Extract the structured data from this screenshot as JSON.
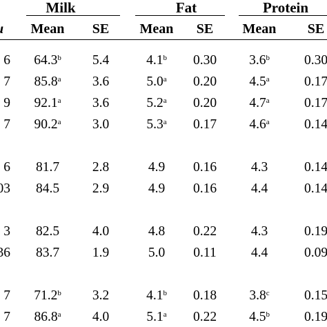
{
  "headers": {
    "groups": [
      "Milk",
      "Fat",
      "Protein"
    ],
    "stub_header": "u",
    "columns": [
      "Mean",
      "SE",
      "Mean",
      "SE",
      "Mean",
      "SE"
    ]
  },
  "rows": [
    {
      "stub": "6",
      "cells": [
        {
          "v": "64.3",
          "s": "b"
        },
        {
          "v": "5.4",
          "s": ""
        },
        {
          "v": "4.1",
          "s": "b"
        },
        {
          "v": "0.30",
          "s": ""
        },
        {
          "v": "3.6",
          "s": "b"
        },
        {
          "v": "0.30",
          "s": ""
        }
      ]
    },
    {
      "stub": "7",
      "cells": [
        {
          "v": "85.8",
          "s": "a"
        },
        {
          "v": "3.6",
          "s": ""
        },
        {
          "v": "5.0",
          "s": "a"
        },
        {
          "v": "0.20",
          "s": ""
        },
        {
          "v": "4.5",
          "s": "a"
        },
        {
          "v": "0.17",
          "s": ""
        }
      ]
    },
    {
      "stub": "9",
      "cells": [
        {
          "v": "92.1",
          "s": "a"
        },
        {
          "v": "3.6",
          "s": ""
        },
        {
          "v": "5.2",
          "s": "a"
        },
        {
          "v": "0.20",
          "s": ""
        },
        {
          "v": "4.7",
          "s": "a"
        },
        {
          "v": "0.17",
          "s": ""
        }
      ]
    },
    {
      "stub": "7",
      "cells": [
        {
          "v": "90.2",
          "s": "a"
        },
        {
          "v": "3.0",
          "s": ""
        },
        {
          "v": "5.3",
          "s": "a"
        },
        {
          "v": "0.17",
          "s": ""
        },
        {
          "v": "4.6",
          "s": "a"
        },
        {
          "v": "0.14",
          "s": ""
        }
      ]
    },
    {
      "stub": "6",
      "cells": [
        {
          "v": "81.7",
          "s": ""
        },
        {
          "v": "2.8",
          "s": ""
        },
        {
          "v": "4.9",
          "s": ""
        },
        {
          "v": "0.16",
          "s": ""
        },
        {
          "v": "4.3",
          "s": ""
        },
        {
          "v": "0.14",
          "s": ""
        }
      ]
    },
    {
      "stub": "03",
      "cells": [
        {
          "v": "84.5",
          "s": ""
        },
        {
          "v": "2.9",
          "s": ""
        },
        {
          "v": "4.9",
          "s": ""
        },
        {
          "v": "0.16",
          "s": ""
        },
        {
          "v": "4.4",
          "s": ""
        },
        {
          "v": "0.14",
          "s": ""
        }
      ]
    },
    {
      "stub": "3",
      "cells": [
        {
          "v": "82.5",
          "s": ""
        },
        {
          "v": "4.0",
          "s": ""
        },
        {
          "v": "4.8",
          "s": ""
        },
        {
          "v": "0.22",
          "s": ""
        },
        {
          "v": "4.3",
          "s": ""
        },
        {
          "v": "0.19",
          "s": ""
        }
      ]
    },
    {
      "stub": "36",
      "cells": [
        {
          "v": "83.7",
          "s": ""
        },
        {
          "v": "1.9",
          "s": ""
        },
        {
          "v": "5.0",
          "s": ""
        },
        {
          "v": "0.11",
          "s": ""
        },
        {
          "v": "4.4",
          "s": ""
        },
        {
          "v": "0.09",
          "s": ""
        }
      ]
    },
    {
      "stub": "7",
      "cells": [
        {
          "v": "71.2",
          "s": "b"
        },
        {
          "v": "3.2",
          "s": ""
        },
        {
          "v": "4.1",
          "s": "b"
        },
        {
          "v": "0.18",
          "s": ""
        },
        {
          "v": "3.8",
          "s": "c"
        },
        {
          "v": "0.15",
          "s": ""
        }
      ]
    },
    {
      "stub": "7",
      "cells": [
        {
          "v": "86.8",
          "s": "a"
        },
        {
          "v": "4.0",
          "s": ""
        },
        {
          "v": "5.1",
          "s": "a"
        },
        {
          "v": "0.22",
          "s": ""
        },
        {
          "v": "4.5",
          "s": "b"
        },
        {
          "v": "0.19",
          "s": ""
        }
      ]
    }
  ]
}
